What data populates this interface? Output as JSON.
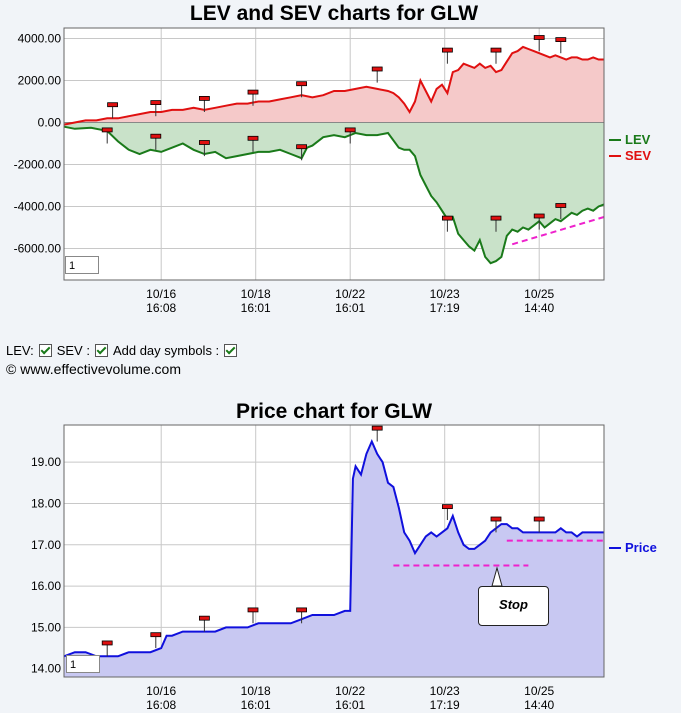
{
  "chart_data": [
    {
      "type": "area",
      "title": "LEV and SEV charts for GLW",
      "ylim": [
        -7500,
        4500
      ],
      "y_ticks": [
        "4000.00",
        "2000.00",
        "0.00",
        "-2000.00",
        "-4000.00",
        "-6000.00"
      ],
      "y_tick_values": [
        4000,
        2000,
        0,
        -2000,
        -4000,
        -6000
      ],
      "x_ticks": [
        {
          "date": "10/16",
          "time": "16:08"
        },
        {
          "date": "10/18",
          "time": "16:01"
        },
        {
          "date": "10/22",
          "time": "16:01"
        },
        {
          "date": "10/23",
          "time": "17:19"
        },
        {
          "date": "10/25",
          "time": "14:40"
        }
      ],
      "legend": [
        {
          "name": "LEV",
          "color": "#1a7a1a"
        },
        {
          "name": "SEV",
          "color": "#e01010"
        }
      ],
      "legend_position": "right",
      "zoom_value": "1",
      "series": [
        {
          "name": "LEV",
          "color": "#1a7a1a",
          "points": [
            [
              0,
              -200
            ],
            [
              2,
              -300
            ],
            [
              5,
              -250
            ],
            [
              8,
              -400
            ],
            [
              10,
              -900
            ],
            [
              12,
              -1300
            ],
            [
              14,
              -1500
            ],
            [
              16,
              -1300
            ],
            [
              18,
              -1400
            ],
            [
              20,
              -1200
            ],
            [
              22,
              -1000
            ],
            [
              24,
              -1300
            ],
            [
              26,
              -1500
            ],
            [
              28,
              -1400
            ],
            [
              30,
              -1700
            ],
            [
              32,
              -1600
            ],
            [
              34,
              -1500
            ],
            [
              36,
              -1400
            ],
            [
              38,
              -1400
            ],
            [
              40,
              -1300
            ],
            [
              42,
              -1500
            ],
            [
              44,
              -1700
            ],
            [
              45,
              -1200
            ],
            [
              46,
              -1100
            ],
            [
              48,
              -700
            ],
            [
              50,
              -600
            ],
            [
              52,
              -700
            ],
            [
              54,
              -500
            ],
            [
              56,
              -600
            ],
            [
              58,
              -600
            ],
            [
              60,
              -500
            ],
            [
              62,
              -1200
            ],
            [
              63,
              -1300
            ],
            [
              64,
              -1300
            ],
            [
              65,
              -1600
            ],
            [
              66,
              -2500
            ],
            [
              67,
              -3000
            ],
            [
              68,
              -3500
            ],
            [
              69,
              -3800
            ],
            [
              70,
              -4200
            ],
            [
              71,
              -4600
            ],
            [
              72,
              -4500
            ],
            [
              73,
              -5300
            ],
            [
              74,
              -5600
            ],
            [
              75,
              -5900
            ],
            [
              76,
              -6100
            ],
            [
              77,
              -5600
            ],
            [
              78,
              -6400
            ],
            [
              79,
              -6700
            ],
            [
              80,
              -6600
            ],
            [
              81,
              -6400
            ],
            [
              82,
              -5400
            ],
            [
              83,
              -5100
            ],
            [
              84,
              -5200
            ],
            [
              85,
              -5000
            ],
            [
              86,
              -5100
            ],
            [
              87,
              -4900
            ],
            [
              88,
              -4700
            ],
            [
              89,
              -5000
            ],
            [
              90,
              -4800
            ],
            [
              91,
              -4600
            ],
            [
              92,
              -4700
            ],
            [
              93,
              -4500
            ],
            [
              94,
              -4300
            ],
            [
              95,
              -4400
            ],
            [
              96,
              -4200
            ],
            [
              97,
              -4100
            ],
            [
              98,
              -4200
            ],
            [
              99,
              -4000
            ],
            [
              100,
              -3900
            ]
          ]
        },
        {
          "name": "SEV",
          "color": "#e01010",
          "points": [
            [
              0,
              -100
            ],
            [
              2,
              0
            ],
            [
              4,
              100
            ],
            [
              6,
              100
            ],
            [
              8,
              200
            ],
            [
              10,
              200
            ],
            [
              12,
              300
            ],
            [
              14,
              400
            ],
            [
              16,
              500
            ],
            [
              18,
              500
            ],
            [
              20,
              600
            ],
            [
              22,
              600
            ],
            [
              24,
              700
            ],
            [
              26,
              600
            ],
            [
              28,
              700
            ],
            [
              30,
              800
            ],
            [
              32,
              900
            ],
            [
              34,
              900
            ],
            [
              36,
              1000
            ],
            [
              38,
              1000
            ],
            [
              40,
              1100
            ],
            [
              42,
              1200
            ],
            [
              44,
              1300
            ],
            [
              46,
              1200
            ],
            [
              48,
              1300
            ],
            [
              50,
              1500
            ],
            [
              52,
              1500
            ],
            [
              54,
              1600
            ],
            [
              56,
              1700
            ],
            [
              58,
              1600
            ],
            [
              60,
              1500
            ],
            [
              61,
              1400
            ],
            [
              62,
              1200
            ],
            [
              63,
              900
            ],
            [
              64,
              500
            ],
            [
              65,
              1000
            ],
            [
              66,
              2000
            ],
            [
              67,
              1500
            ],
            [
              68,
              1000
            ],
            [
              69,
              1600
            ],
            [
              70,
              1800
            ],
            [
              71,
              1400
            ],
            [
              72,
              2400
            ],
            [
              73,
              2500
            ],
            [
              74,
              2800
            ],
            [
              75,
              2700
            ],
            [
              76,
              2600
            ],
            [
              77,
              2800
            ],
            [
              78,
              2600
            ],
            [
              79,
              2700
            ],
            [
              80,
              2400
            ],
            [
              81,
              2500
            ],
            [
              82,
              2900
            ],
            [
              83,
              3300
            ],
            [
              84,
              3400
            ],
            [
              85,
              3600
            ],
            [
              86,
              3500
            ],
            [
              87,
              3400
            ],
            [
              88,
              3300
            ],
            [
              89,
              3200
            ],
            [
              90,
              3100
            ],
            [
              91,
              3200
            ],
            [
              92,
              3100
            ],
            [
              93,
              3000
            ],
            [
              94,
              3100
            ],
            [
              95,
              3100
            ],
            [
              96,
              3000
            ],
            [
              97,
              3000
            ],
            [
              98,
              3100
            ],
            [
              99,
              3000
            ],
            [
              100,
              3000
            ]
          ]
        }
      ],
      "day_markers_lev": [
        [
          8,
          -400
        ],
        [
          17,
          -700
        ],
        [
          26,
          -1000
        ],
        [
          35,
          -800
        ],
        [
          44,
          -1200
        ],
        [
          53,
          -400
        ],
        [
          71,
          -4600
        ],
        [
          80,
          -4600
        ],
        [
          88,
          -4500
        ],
        [
          92,
          -4000
        ]
      ],
      "day_markers_sev": [
        [
          9,
          800
        ],
        [
          17,
          900
        ],
        [
          26,
          1100
        ],
        [
          35,
          1400
        ],
        [
          44,
          1800
        ],
        [
          58,
          2500
        ],
        [
          71,
          3400
        ],
        [
          80,
          3400
        ],
        [
          88,
          4000
        ],
        [
          92,
          3900
        ]
      ],
      "annotations": [
        {
          "type": "dashed-line",
          "color": "#ee22cc",
          "from": [
            83,
            -5800
          ],
          "to": [
            100,
            -4500
          ]
        }
      ]
    },
    {
      "type": "area",
      "title": "Price chart for GLW",
      "ylim": [
        13.8,
        19.9
      ],
      "y_ticks": [
        "19.00",
        "18.00",
        "17.00",
        "16.00",
        "15.00",
        "14.00"
      ],
      "y_tick_values": [
        19,
        18,
        17,
        16,
        15,
        14
      ],
      "x_ticks": [
        {
          "date": "10/16",
          "time": "16:08"
        },
        {
          "date": "10/18",
          "time": "16:01"
        },
        {
          "date": "10/22",
          "time": "16:01"
        },
        {
          "date": "10/23",
          "time": "17:19"
        },
        {
          "date": "10/25",
          "time": "14:40"
        }
      ],
      "legend": [
        {
          "name": "Price",
          "color": "#1010dd"
        }
      ],
      "legend_position": "right",
      "zoom_value": "1",
      "series": [
        {
          "name": "Price",
          "color": "#1010dd",
          "points": [
            [
              0,
              14.3
            ],
            [
              2,
              14.4
            ],
            [
              4,
              14.4
            ],
            [
              6,
              14.3
            ],
            [
              8,
              14.3
            ],
            [
              10,
              14.3
            ],
            [
              12,
              14.4
            ],
            [
              14,
              14.4
            ],
            [
              16,
              14.4
            ],
            [
              18,
              14.5
            ],
            [
              19,
              14.8
            ],
            [
              20,
              14.8
            ],
            [
              22,
              14.9
            ],
            [
              24,
              14.9
            ],
            [
              26,
              14.9
            ],
            [
              28,
              14.9
            ],
            [
              30,
              15.0
            ],
            [
              32,
              15.0
            ],
            [
              34,
              15.0
            ],
            [
              36,
              15.1
            ],
            [
              38,
              15.1
            ],
            [
              40,
              15.1
            ],
            [
              42,
              15.1
            ],
            [
              44,
              15.2
            ],
            [
              46,
              15.3
            ],
            [
              48,
              15.3
            ],
            [
              50,
              15.3
            ],
            [
              52,
              15.4
            ],
            [
              53,
              15.4
            ],
            [
              53.5,
              18.6
            ],
            [
              54,
              18.9
            ],
            [
              55,
              18.7
            ],
            [
              56,
              19.2
            ],
            [
              57,
              19.5
            ],
            [
              58,
              19.2
            ],
            [
              59,
              19.0
            ],
            [
              60,
              18.5
            ],
            [
              61,
              18.4
            ],
            [
              62,
              17.9
            ],
            [
              63,
              17.3
            ],
            [
              64,
              17.1
            ],
            [
              65,
              16.8
            ],
            [
              66,
              17.0
            ],
            [
              67,
              17.2
            ],
            [
              68,
              17.3
            ],
            [
              69,
              17.2
            ],
            [
              70,
              17.3
            ],
            [
              71,
              17.4
            ],
            [
              72,
              17.7
            ],
            [
              73,
              17.3
            ],
            [
              74,
              17.0
            ],
            [
              75,
              16.9
            ],
            [
              76,
              16.9
            ],
            [
              77,
              17.0
            ],
            [
              78,
              17.1
            ],
            [
              79,
              17.3
            ],
            [
              80,
              17.4
            ],
            [
              81,
              17.5
            ],
            [
              82,
              17.5
            ],
            [
              83,
              17.4
            ],
            [
              84,
              17.4
            ],
            [
              85,
              17.3
            ],
            [
              86,
              17.3
            ],
            [
              87,
              17.3
            ],
            [
              88,
              17.3
            ],
            [
              89,
              17.3
            ],
            [
              90,
              17.3
            ],
            [
              91,
              17.3
            ],
            [
              92,
              17.4
            ],
            [
              93,
              17.3
            ],
            [
              94,
              17.3
            ],
            [
              95,
              17.2
            ],
            [
              96,
              17.3
            ],
            [
              97,
              17.3
            ],
            [
              98,
              17.3
            ],
            [
              99,
              17.3
            ],
            [
              100,
              17.3
            ]
          ]
        }
      ],
      "day_markers": [
        [
          8,
          14.6
        ],
        [
          17,
          14.8
        ],
        [
          26,
          15.2
        ],
        [
          35,
          15.4
        ],
        [
          44,
          15.4
        ],
        [
          58,
          19.8
        ],
        [
          71,
          17.9
        ],
        [
          80,
          17.6
        ],
        [
          88,
          17.6
        ]
      ],
      "annotations": [
        {
          "type": "dashed-line",
          "color": "#ee22cc",
          "from": [
            61,
            16.5
          ],
          "to": [
            86,
            16.5
          ]
        },
        {
          "type": "dashed-line",
          "color": "#ee22cc",
          "from": [
            82,
            17.1
          ],
          "to": [
            100,
            17.1
          ]
        }
      ],
      "callout": "Stop"
    }
  ],
  "footer": {
    "legend_controls": [
      "LEV:",
      "SEV :",
      "Add day symbols :"
    ],
    "copyright": "© www.effectivevolume.com"
  }
}
